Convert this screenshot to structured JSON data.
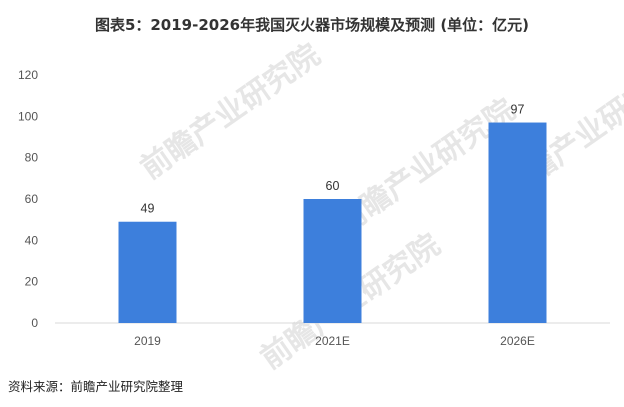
{
  "chart_data": {
    "type": "bar",
    "title": "图表5：2019-2026年我国灭火器市场规模及预测 (单位：亿元)",
    "categories": [
      "2019",
      "2021E",
      "2026E"
    ],
    "values": [
      49,
      60,
      97
    ],
    "ylim": [
      0,
      120
    ],
    "yticks": [
      0,
      20,
      40,
      60,
      80,
      100,
      120
    ],
    "xlabel": "",
    "ylabel": "",
    "grid": false,
    "bar_color": "#3d7fdc",
    "source": "资料来源：前瞻产业研究院整理",
    "watermark": "前瞻产业研究院"
  }
}
